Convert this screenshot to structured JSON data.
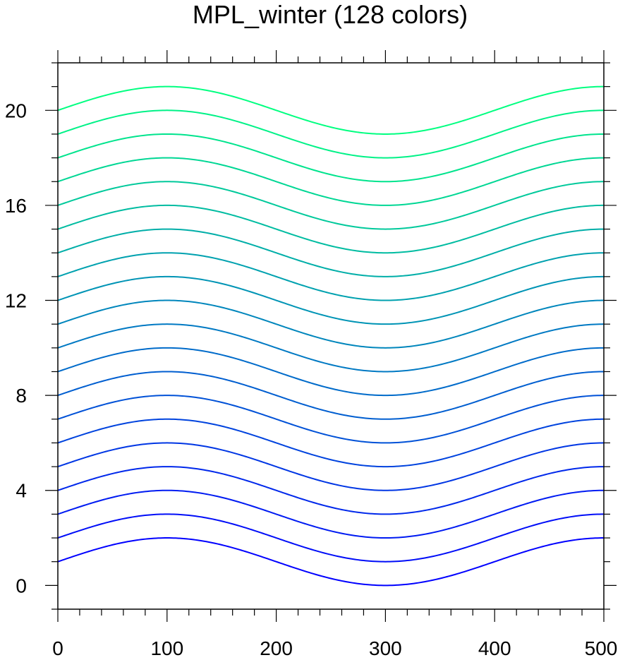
{
  "chart_data": {
    "type": "line",
    "title": "MPL_winter (128 colors)",
    "xlabel": "",
    "ylabel": "",
    "xlim": [
      0,
      500
    ],
    "ylim": [
      -1,
      22
    ],
    "x_ticks": [
      0,
      100,
      200,
      300,
      400,
      500
    ],
    "y_ticks": [
      0,
      4,
      8,
      12,
      16,
      20
    ],
    "x_minor_step": 20,
    "y_minor_step": 1,
    "grid": false,
    "legend": "none",
    "curve": "sin(x * pi / 200)",
    "offsets": [
      1,
      2,
      3,
      4,
      5,
      6,
      7,
      8,
      9,
      10,
      11,
      12,
      13,
      14,
      15,
      16,
      17,
      18,
      19,
      20
    ],
    "colors": [
      "#0000ff",
      "#0007fb",
      "#000ef7",
      "#0015f3",
      "#001cef",
      "#0023eb",
      "#002ae7",
      "#0031e3",
      "#0038df",
      "#003fdb",
      "#0046d7",
      "#004dd3",
      "#0054cf",
      "#005bcb",
      "#0062c7",
      "#0069c3",
      "#0070bf",
      "#0077bb",
      "#007eb7",
      "#00ffa0"
    ]
  }
}
